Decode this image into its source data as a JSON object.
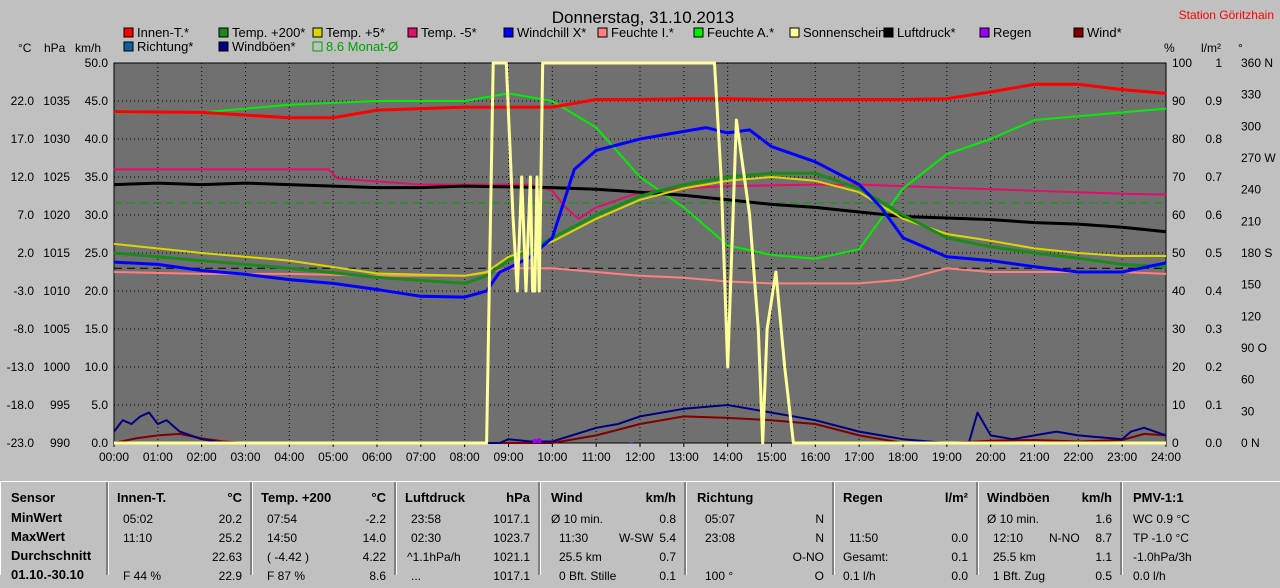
{
  "title": "Donnerstag, 31.10.2013",
  "station": "Station Göritzhain",
  "axis_units": {
    "celsius": "°C",
    "hpa": "hPa",
    "kmh": "km/h",
    "percent": "%",
    "lm2": "l/m²",
    "deg": "°"
  },
  "legend": [
    {
      "label": "Innen-T.*",
      "color": "#ff0000"
    },
    {
      "label": "Temp. +200*",
      "color": "#1a8a1a"
    },
    {
      "label": "Temp. +5*",
      "color": "#d8d800"
    },
    {
      "label": "Temp. -5*",
      "color": "#e0106a"
    },
    {
      "label": "Windchill X*",
      "color": "#0000ff"
    },
    {
      "label": "Feuchte I.*",
      "color": "#ff8080"
    },
    {
      "label": "Feuchte A.*",
      "color": "#00ee00"
    },
    {
      "label": "Sonnenschein",
      "color": "#ffff99"
    },
    {
      "label": "Luftdruck*",
      "color": "#000000"
    },
    {
      "label": "Regen",
      "color": "#9900ff"
    },
    {
      "label": "Wind*",
      "color": "#800000"
    },
    {
      "label": "Richtung*",
      "color": "#1060a0"
    },
    {
      "label": "Windböen*",
      "color": "#000080"
    },
    {
      "label": "8.6 Monat-Ø",
      "color": "#00a000"
    }
  ],
  "chart_data": {
    "type": "line",
    "title": "Donnerstag, 31.10.2013",
    "x_ticks": [
      "00:00",
      "01:00",
      "02:00",
      "03:00",
      "04:00",
      "05:00",
      "06:00",
      "07:00",
      "08:00",
      "09:00",
      "10:00",
      "11:00",
      "12:00",
      "13:00",
      "14:00",
      "15:00",
      "16:00",
      "17:00",
      "18:00",
      "19:00",
      "20:00",
      "21:00",
      "22:00",
      "23:00",
      "24:00"
    ],
    "axes": {
      "celsius": {
        "ticks": [
          "22.0",
          "17.0",
          "12.0",
          "7.0",
          "2.0",
          "-3.0",
          "-8.0",
          "-13.0",
          "-18.0",
          "-23.0"
        ],
        "range": [
          -23,
          27
        ]
      },
      "hpa": {
        "ticks": [
          "1035",
          "1030",
          "1025",
          "1020",
          "1015",
          "1010",
          "1005",
          "1000",
          "995",
          "990"
        ],
        "range": [
          990,
          1040
        ]
      },
      "kmh": {
        "ticks": [
          "50.0",
          "45.0",
          "40.0",
          "35.0",
          "30.0",
          "25.0",
          "20.0",
          "15.0",
          "10.0",
          "5.0",
          "0.0"
        ],
        "range": [
          0,
          50
        ]
      },
      "percent": {
        "ticks": [
          "100",
          "90",
          "80",
          "70",
          "60",
          "50",
          "40",
          "30",
          "20",
          "10",
          "0"
        ],
        "range": [
          0,
          100
        ]
      },
      "lm2": {
        "ticks": [
          "1",
          "0.9",
          "0.8",
          "0.7",
          "0.6",
          "0.5",
          "0.4",
          "0.3",
          "0.2",
          "0.1",
          "0.0"
        ],
        "range": [
          0,
          1
        ]
      },
      "deg": {
        "ticks": [
          "360 N",
          "330",
          "300",
          "270 W",
          "240",
          "210",
          "180 S",
          "150",
          "120",
          "90 O",
          "60",
          "30",
          "0 N"
        ],
        "range": [
          0,
          360
        ]
      }
    },
    "reference_lines": [
      {
        "name": "8.6 Monat-Ø",
        "value_c": 8.6,
        "color": "#00a000",
        "style": "dashed"
      },
      {
        "value_c": 0.0,
        "color": "#000000",
        "style": "dashed"
      }
    ],
    "series": [
      {
        "name": "Innen-T.*",
        "color": "#ff0000",
        "width": 3,
        "x": [
          0,
          2,
          4,
          5,
          6,
          8,
          9,
          10,
          11,
          12,
          13,
          14,
          15,
          16,
          17,
          18,
          19,
          20,
          21,
          22,
          23,
          24
        ],
        "y": [
          20.6,
          20.5,
          19.8,
          19.8,
          20.8,
          21.2,
          21.2,
          21.2,
          22.2,
          22.2,
          22.3,
          22.3,
          22.2,
          22.2,
          22.2,
          22.2,
          22.3,
          23.2,
          24.2,
          24.2,
          23.5,
          23.0
        ]
      },
      {
        "name": "Temp. +200*",
        "color": "#1a8a1a",
        "width": 3,
        "x": [
          0,
          2,
          4,
          6,
          8,
          8.5,
          9,
          10,
          11,
          12,
          13,
          14,
          15,
          16,
          17,
          18,
          19,
          20,
          21,
          22,
          23,
          24
        ],
        "y": [
          2.0,
          1.0,
          0.0,
          -1.2,
          -2.0,
          -1.0,
          1.0,
          4.0,
          7.0,
          9.5,
          11.0,
          12.0,
          12.5,
          12.5,
          10.5,
          7.0,
          4.0,
          2.8,
          2.0,
          1.3,
          0.5,
          0.2
        ]
      },
      {
        "name": "Temp. +5*",
        "color": "#d8d800",
        "width": 2,
        "x": [
          0,
          2,
          4,
          6,
          8,
          8.5,
          9,
          10,
          11,
          12,
          13,
          14,
          15,
          16,
          17,
          18,
          19,
          20,
          21,
          22,
          23,
          24
        ],
        "y": [
          3.2,
          2.0,
          1.0,
          -0.7,
          -1.0,
          -0.5,
          1.5,
          3.5,
          6.5,
          9.0,
          10.5,
          11.5,
          12.0,
          11.5,
          10.0,
          6.5,
          4.5,
          3.6,
          2.6,
          2.0,
          1.6,
          1.6
        ]
      },
      {
        "name": "Temp. -5*",
        "color": "#e0106a",
        "width": 2,
        "x": [
          0,
          3,
          4.9,
          5.1,
          7,
          9,
          9.5,
          10,
          10.3,
          10.6,
          11,
          12,
          13,
          14,
          15,
          16,
          17,
          18,
          19,
          20,
          21,
          22,
          23,
          24
        ],
        "y": [
          13.0,
          13.0,
          13.0,
          11.8,
          11.0,
          11.0,
          11.0,
          10.2,
          8.0,
          6.5,
          8.0,
          10.0,
          10.5,
          10.8,
          10.9,
          11.0,
          11.0,
          10.8,
          10.6,
          10.4,
          10.2,
          10.0,
          9.8,
          9.7
        ]
      },
      {
        "name": "Windchill X*",
        "color": "#0000ff",
        "width": 3,
        "x": [
          0,
          1,
          2,
          3,
          4,
          5,
          6,
          7,
          8,
          8.5,
          8.8,
          9,
          9.5,
          10,
          10.5,
          11,
          12,
          13,
          13.5,
          14,
          14.5,
          15,
          16,
          17,
          17.5,
          18,
          19,
          20,
          21,
          22,
          23,
          24
        ],
        "y": [
          0.8,
          0.5,
          -0.3,
          -0.8,
          -1.5,
          -2.0,
          -2.8,
          -3.7,
          -3.8,
          -3.0,
          -0.5,
          0.0,
          1.5,
          4.0,
          13.0,
          15.5,
          17.0,
          18.0,
          18.5,
          17.8,
          18.2,
          16.0,
          14.0,
          11.0,
          8.0,
          4.0,
          1.5,
          1.0,
          0.2,
          -0.5,
          -0.5,
          0.7
        ]
      },
      {
        "name": "Feuchte I.*",
        "color": "#ff8080",
        "width": 2,
        "x": [
          0,
          2,
          4,
          6,
          8,
          8.6,
          9,
          10,
          11,
          12,
          13,
          14,
          15,
          16,
          17,
          18,
          19,
          20,
          21,
          22,
          23,
          24
        ],
        "y": [
          45.0,
          44.5,
          44.5,
          44.0,
          44.0,
          45.0,
          46.0,
          46.0,
          45.0,
          44.0,
          43.5,
          42.5,
          42.0,
          42.0,
          42.0,
          43.0,
          46.0,
          45.0,
          45.0,
          45.0,
          45.0,
          44.5
        ]
      },
      {
        "name": "Feuchte A.*",
        "color": "#00ee00",
        "width": 2,
        "x": [
          0,
          2,
          3,
          4,
          6,
          8,
          9,
          10,
          11,
          12,
          13,
          14,
          15,
          16,
          17,
          18,
          19,
          20,
          21,
          22,
          23,
          24
        ],
        "y": [
          87.0,
          87.0,
          88.0,
          89.0,
          90.0,
          90.0,
          92.0,
          90.0,
          83.0,
          70.0,
          62.0,
          52.0,
          49.5,
          48.5,
          51.0,
          67.0,
          76.0,
          80.0,
          85.0,
          86.0,
          87.0,
          88.0
        ]
      },
      {
        "name": "Luftdruck*",
        "color": "#000000",
        "width": 3,
        "x": [
          0,
          1,
          2,
          3,
          4,
          5,
          6,
          7,
          8,
          9,
          10,
          11,
          12,
          13,
          14,
          15,
          16,
          17,
          18,
          19,
          20,
          21,
          22,
          23,
          24
        ],
        "y": [
          1024.0,
          1024.2,
          1024.0,
          1024.2,
          1024.0,
          1023.8,
          1023.6,
          1023.6,
          1023.8,
          1023.7,
          1023.6,
          1023.4,
          1023.0,
          1022.6,
          1022.0,
          1021.4,
          1021.0,
          1020.4,
          1019.8,
          1019.6,
          1019.4,
          1019.0,
          1018.8,
          1018.4,
          1017.8
        ]
      },
      {
        "name": "Sonnenschein",
        "color": "#ffff99",
        "width": 3,
        "x": [
          0,
          8.5,
          8.65,
          8.95,
          9.1,
          9.15,
          9.2,
          9.3,
          9.4,
          9.5,
          9.55,
          9.6,
          9.65,
          9.7,
          9.78,
          13.7,
          13.85,
          14.0,
          14.2,
          14.5,
          14.7,
          14.8,
          14.9,
          15.1,
          15.3,
          15.5,
          15.6,
          24
        ],
        "y": [
          0,
          0,
          100,
          100,
          60,
          50,
          40,
          70,
          40,
          70,
          40,
          40,
          70,
          40,
          100,
          100,
          70,
          20,
          85,
          60,
          30,
          0,
          30,
          45,
          20,
          0,
          0,
          0
        ]
      },
      {
        "name": "Wind*",
        "color": "#800000",
        "width": 2,
        "x": [
          0,
          0.5,
          1,
          1.5,
          2,
          2.5,
          3,
          3.5,
          4,
          5,
          6,
          8,
          9,
          10,
          11,
          12,
          13,
          14,
          15,
          16,
          17,
          18,
          19,
          20,
          21,
          22,
          23,
          23.5,
          24
        ],
        "y": [
          0.0,
          0.6,
          1.0,
          1.2,
          0.6,
          0.2,
          0.0,
          0.0,
          0.0,
          0.0,
          0.0,
          0.0,
          0.0,
          0.0,
          1.0,
          2.5,
          3.5,
          3.3,
          3.0,
          2.5,
          1.0,
          0.0,
          0.0,
          0.3,
          0.4,
          0.2,
          0.4,
          1.2,
          1.0
        ]
      },
      {
        "name": "Windböen*",
        "color": "#000080",
        "width": 2,
        "x": [
          0,
          0.2,
          0.4,
          0.6,
          0.8,
          1,
          1.2,
          1.5,
          2,
          2.5,
          3,
          4,
          8.8,
          9,
          9.5,
          10,
          11,
          11.5,
          12,
          13,
          14,
          14.5,
          15,
          16,
          17,
          18,
          19,
          19.5,
          19.7,
          20,
          20.5,
          21,
          21.5,
          22,
          23,
          23.2,
          23.5,
          24
        ],
        "y": [
          1.5,
          3.0,
          2.5,
          3.5,
          4.0,
          2.5,
          3.0,
          1.5,
          0.5,
          0.0,
          0.0,
          0.0,
          0.0,
          0.5,
          0.2,
          0.2,
          2.0,
          2.5,
          3.5,
          4.5,
          5.0,
          4.5,
          4.0,
          3.0,
          1.5,
          0.5,
          0.0,
          0.0,
          4.0,
          1.0,
          0.5,
          1.0,
          1.5,
          1.0,
          0.5,
          1.5,
          2.0,
          1.0
        ]
      }
    ],
    "regen": [
      {
        "x": 9.6,
        "y": 1.0
      },
      {
        "x": 9.7,
        "y": 1.2
      },
      {
        "x": 11.8,
        "y": 0.2
      }
    ]
  },
  "stats": {
    "labels": {
      "sensor": "Sensor",
      "min": "MinWert",
      "max": "MaxWert",
      "avg": "Durchschnitt",
      "cut": "01.10.-30.10"
    },
    "innen": {
      "title": "Innen-T.",
      "unit": "°C",
      "min_time": "05:02",
      "min_val": "20.2",
      "max_time": "11:10",
      "max_val": "25.2",
      "avg_val": "22.63",
      "cut_a": "F 44 %",
      "cut_b": "22.9"
    },
    "temp200": {
      "title": "Temp. +200",
      "unit": "°C",
      "min_time": "07:54",
      "min_val": "-2.2",
      "max_time": "14:50",
      "max_val": "14.0",
      "avg_a": "( -4.42 )",
      "avg_val": "4.22",
      "cut_a": "F 87 %",
      "cut_b": "8.6"
    },
    "luftdruck": {
      "title": "Luftdruck",
      "unit": "hPa",
      "min_time": "23:58",
      "min_val": "1017.1",
      "max_time": "02:30",
      "max_val": "1023.7",
      "avg_a": "^1.1hPa/h",
      "avg_val": "1021.1",
      "cut_a": "...",
      "cut_b": "1017.1"
    },
    "wind": {
      "title": "Wind",
      "unit": "km/h",
      "min_a": "Ø 10 min.",
      "min_val": "0.8",
      "max_time": "11:30",
      "max_dir": "W-SW",
      "max_val": "5.4",
      "avg_a": "25.5 km",
      "avg_val": "0.7",
      "cut_a": "0 Bft. Stille",
      "cut_b": "0.1"
    },
    "richtung": {
      "title": "Richtung",
      "min_time": "05:07",
      "min_val": "N",
      "max_time": "23:08",
      "max_val": "N",
      "avg_val": "O-NO",
      "cut_a": "100 °",
      "cut_b": "O"
    },
    "regen": {
      "title": "Regen",
      "unit": "l/m²",
      "max_time": "11:50",
      "max_val": "0.0",
      "avg_a": "Gesamt:",
      "avg_val": "0.1",
      "cut_a": "0.1 l/h",
      "cut_b": "0.0"
    },
    "windboeen": {
      "title": "Windböen",
      "unit": "km/h",
      "min_a": "Ø 10 min.",
      "min_val": "1.6",
      "max_time": "12:10",
      "max_dir": "N-NO",
      "max_val": "8.7",
      "avg_a": "25.5 km",
      "avg_val": "1.1",
      "cut_a": "1 Bft. Zug",
      "cut_b": "0.5"
    },
    "pmv": {
      "title": "PMV-1:1",
      "line1": "WC 0.9 °C",
      "line2": "TP -1.0 °C",
      "line3": "-1.0hPa/3h",
      "line4": "0.0 l/h"
    }
  }
}
